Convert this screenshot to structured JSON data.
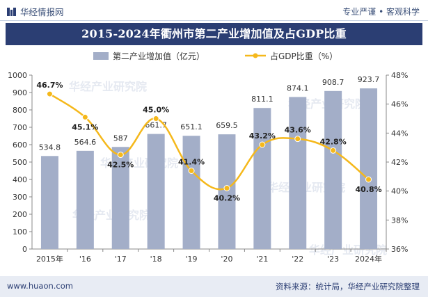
{
  "header": {
    "brand": "华经情报网",
    "tagline": "专业严谨 • 客观科学"
  },
  "footer": {
    "website": "www.huaon.com",
    "source": "资料来源：统计局，华经产业研究院整理"
  },
  "watermark": "华经产业研究院",
  "colors": {
    "bar": "#a3aec8",
    "line": "#f5b81b",
    "title_bg": "#2b3e73",
    "footer_bg": "#e8ecf4"
  },
  "chart_data": {
    "type": "bar+line",
    "title": "2015-2024年衢州市第二产业增加值及占GDP比重",
    "categories": [
      "2015年",
      "'16",
      "'17",
      "'18",
      "'19",
      "'20",
      "'21",
      "'22",
      "'23",
      "2024年"
    ],
    "series": [
      {
        "name": "第二产业增加值（亿元）",
        "type": "bar",
        "axis": "left",
        "values": [
          534.8,
          564.6,
          587,
          661.7,
          651.1,
          659.5,
          811.1,
          874.1,
          908.7,
          923.7
        ],
        "labels": [
          "534.8",
          "564.6",
          "587",
          "661.7",
          "651.1",
          "659.5",
          "811.1",
          "874.1",
          "908.7",
          "923.7"
        ]
      },
      {
        "name": "占GDP比重（%）",
        "type": "line",
        "axis": "right",
        "values": [
          46.7,
          45.1,
          42.5,
          45.0,
          41.4,
          40.2,
          43.2,
          43.6,
          42.8,
          40.8
        ],
        "labels": [
          "46.7%",
          "45.1%",
          "42.5%",
          "45.0%",
          "41.4%",
          "40.2%",
          "43.2%",
          "43.6%",
          "42.8%",
          "40.8%"
        ]
      }
    ],
    "y_left": {
      "min": 0,
      "max": 1000,
      "ticks": [
        "0",
        "100",
        "200",
        "300",
        "400",
        "500",
        "600",
        "700",
        "800",
        "900",
        "1000"
      ]
    },
    "y_right": {
      "min": 36,
      "max": 48,
      "ticks": [
        "36%",
        "38%",
        "40%",
        "42%",
        "44%",
        "46%",
        "48%"
      ]
    },
    "legend_position": "top-center",
    "grid": false
  }
}
